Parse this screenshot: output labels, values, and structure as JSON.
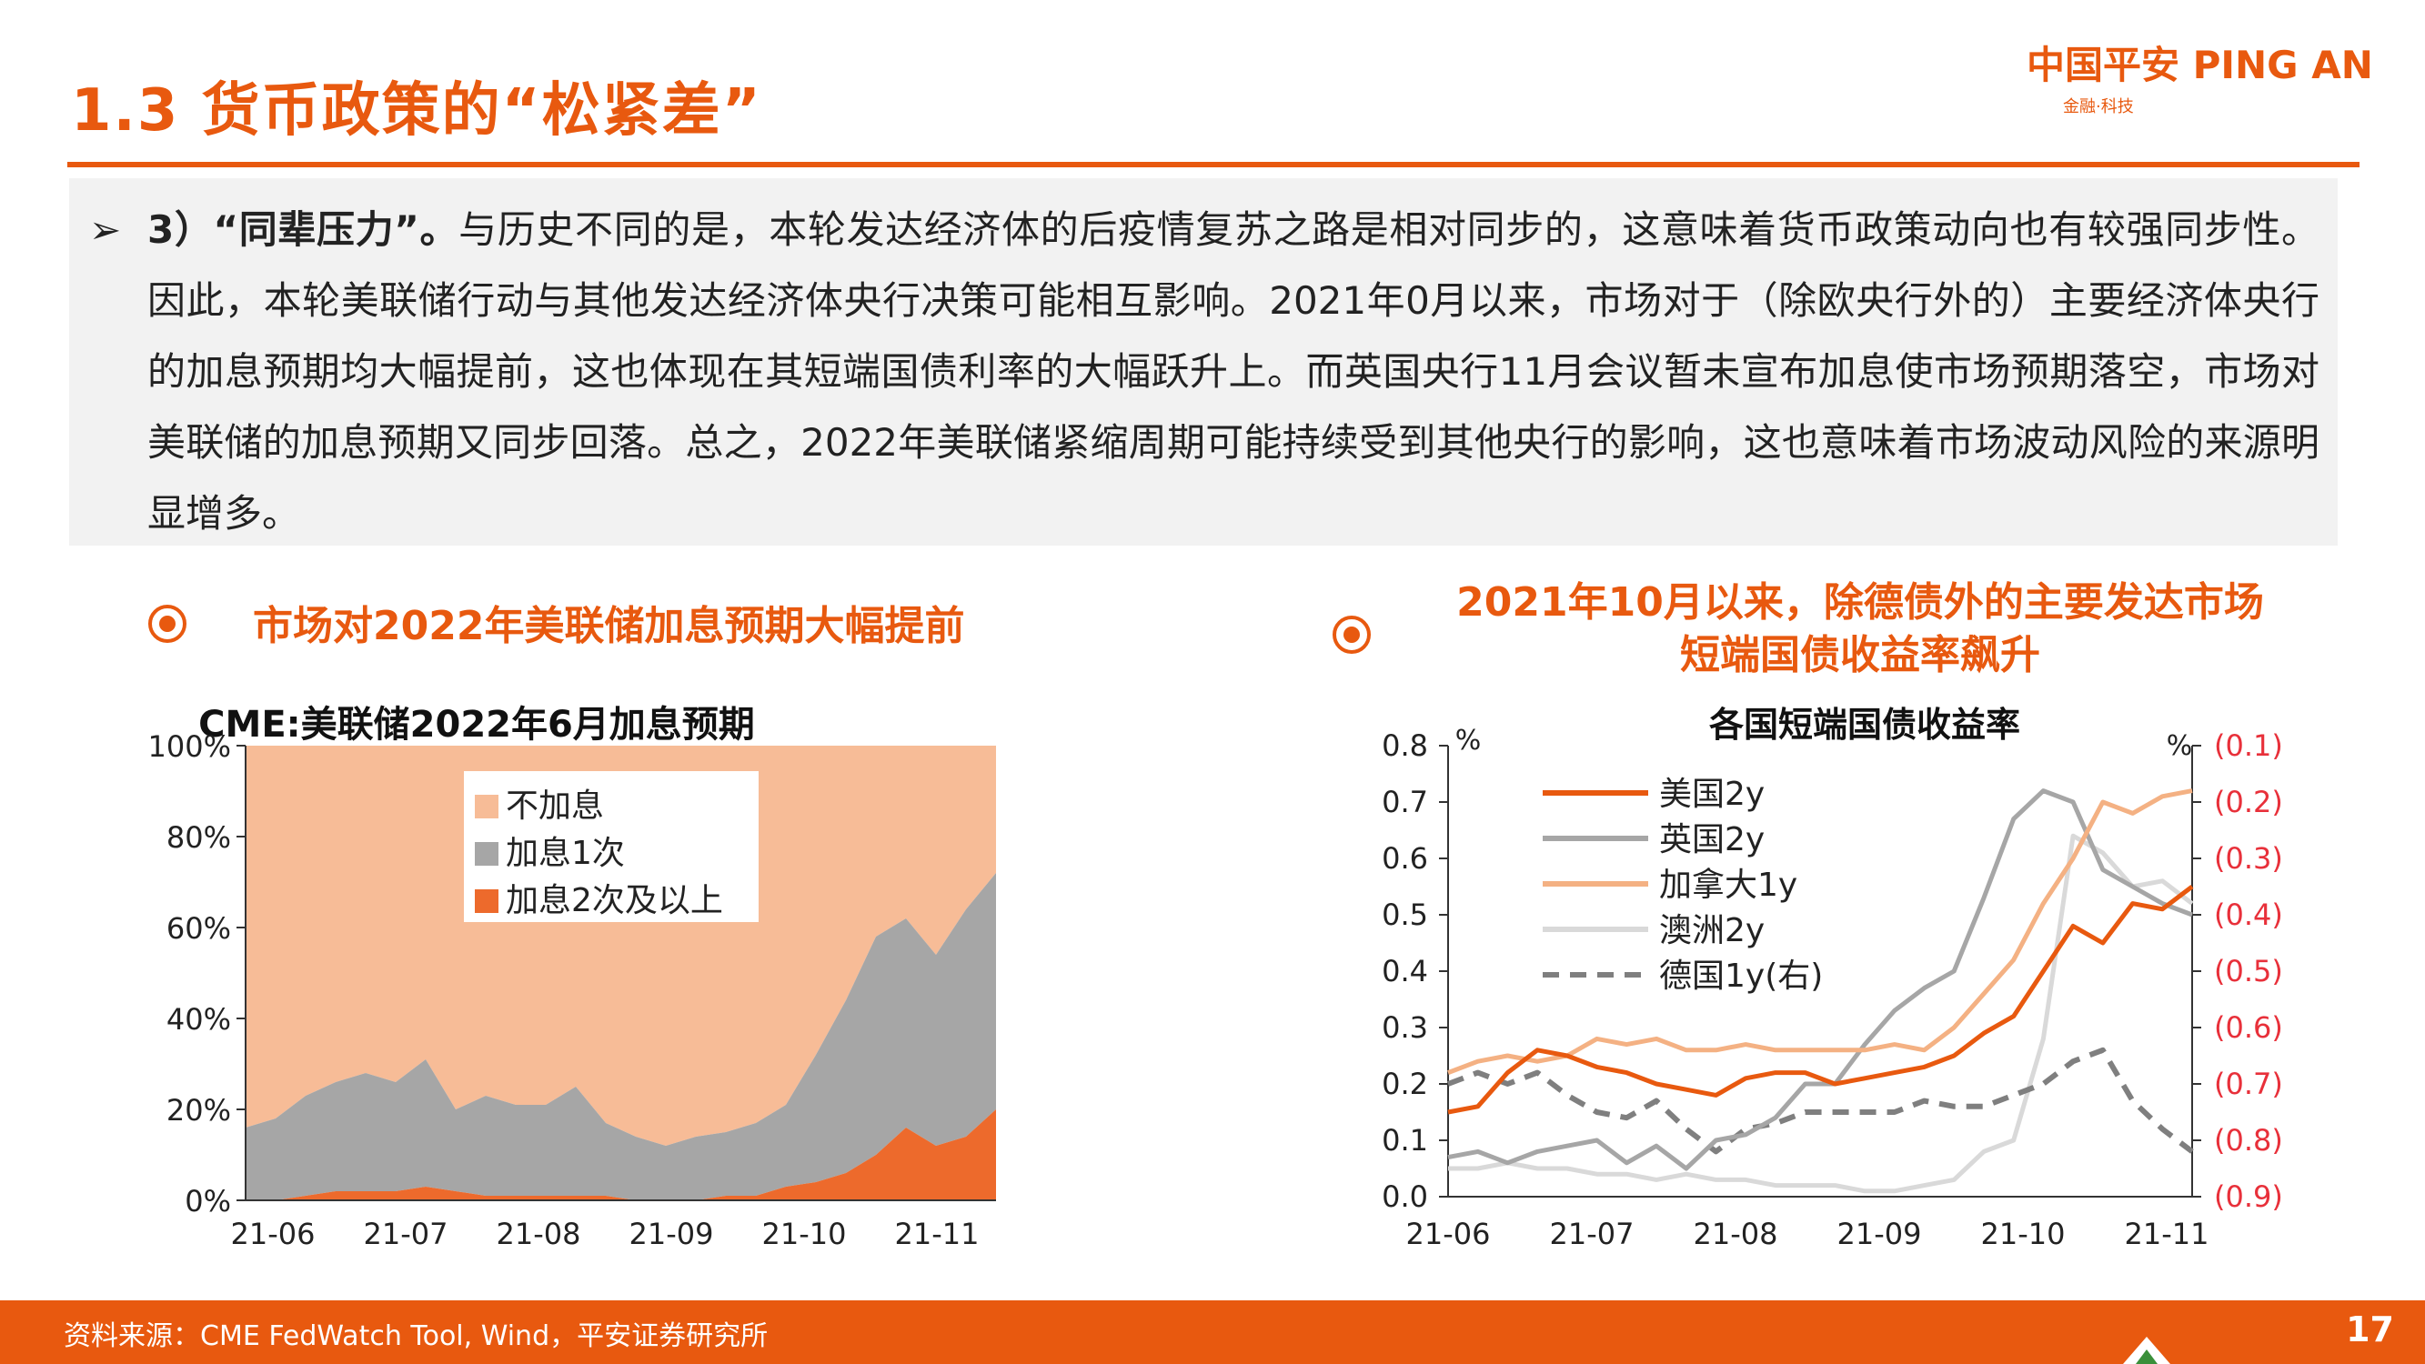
{
  "header": {
    "title": "1.3 货币政策的“松紧差”",
    "logo_main": "中国平安 PING AN",
    "logo_sub": "金融·科技"
  },
  "body": {
    "lead": "3）“同辈压力”。",
    "text": "与历史不同的是，本轮发达经济体的后疫情复苏之路是相对同步的，这意味着货币政策动向也有较强同步性。因此，本轮美联储行动与其他发达经济体央行决策可能相互影响。2021年0月以来，市场对于（除欧央行外的）主要经济体央行的加息预期均大幅提前，这也体现在其短端国债利率的大幅跃升上。而英国央行11月会议暂未宣布加息使市场预期落空，市场对美联储的加息预期又同步回落。总之，2022年美联储紧缩周期可能持续受到其他央行的影响，这也意味着市场波动风险的来源明显增多。"
  },
  "captions": {
    "left": "市场对2022年美联储加息预期大幅提前",
    "right_line1": "2021年10月以来，除德债外的主要发达市场",
    "right_line2": "短端国债收益率飙升"
  },
  "footer": {
    "source": "资料来源：CME FedWatch Tool, Wind，平安证券研究所",
    "page": "17"
  },
  "colors": {
    "accent": "#E8590F",
    "no_hike": "#F7BC97",
    "one_hike": "#A6A6A6",
    "two_plus": "#ED6A2C",
    "uk": "#A6A6A6",
    "canada": "#F4B183",
    "australia": "#D9D9D9",
    "germany": "#7F7F7F"
  },
  "chart_data": [
    {
      "type": "area",
      "stacked": true,
      "title": "CME:美联储2022年6月加息预期",
      "x_ticks": [
        "21-06",
        "21-07",
        "21-08",
        "21-09",
        "21-10",
        "21-11"
      ],
      "y_ticks": [
        "0%",
        "20%",
        "40%",
        "60%",
        "80%",
        "100%"
      ],
      "ylim": [
        0,
        100
      ],
      "legend_position": "top-center",
      "x": [
        "2021-06-01",
        "2021-06-08",
        "2021-06-15",
        "2021-06-22",
        "2021-06-29",
        "2021-07-06",
        "2021-07-13",
        "2021-07-20",
        "2021-07-27",
        "2021-08-03",
        "2021-08-10",
        "2021-08-17",
        "2021-08-24",
        "2021-08-31",
        "2021-09-07",
        "2021-09-14",
        "2021-09-21",
        "2021-09-28",
        "2021-10-05",
        "2021-10-12",
        "2021-10-19",
        "2021-10-26",
        "2021-11-02",
        "2021-11-09",
        "2021-11-16",
        "2021-11-23"
      ],
      "series": [
        {
          "name": "加息2次及以上",
          "values": [
            0,
            0,
            1,
            2,
            2,
            2,
            3,
            2,
            1,
            1,
            1,
            1,
            1,
            0,
            0,
            0,
            1,
            1,
            3,
            4,
            6,
            10,
            16,
            12,
            14,
            20
          ]
        },
        {
          "name": "加息1次",
          "values": [
            16,
            18,
            22,
            24,
            26,
            24,
            28,
            18,
            22,
            20,
            20,
            24,
            16,
            14,
            12,
            14,
            14,
            16,
            18,
            28,
            38,
            48,
            46,
            42,
            50,
            52
          ]
        },
        {
          "name": "不加息",
          "values": [
            84,
            82,
            77,
            74,
            72,
            74,
            69,
            80,
            77,
            79,
            79,
            75,
            83,
            86,
            88,
            86,
            85,
            83,
            79,
            68,
            56,
            42,
            38,
            46,
            36,
            28
          ]
        }
      ]
    },
    {
      "type": "line",
      "title": "各国短端国债收益率",
      "x_ticks": [
        "21-06",
        "21-07",
        "21-08",
        "21-09",
        "21-10",
        "21-11"
      ],
      "left_unit": "%",
      "right_unit": "%",
      "left_y_ticks": [
        "0.0",
        "0.1",
        "0.2",
        "0.3",
        "0.4",
        "0.5",
        "0.6",
        "0.7",
        "0.8"
      ],
      "right_y_ticks": [
        "(0.9)",
        "(0.8)",
        "(0.7)",
        "(0.6)",
        "(0.5)",
        "(0.4)",
        "(0.3)",
        "(0.2)",
        "(0.1)"
      ],
      "ylim_left": [
        0,
        0.8
      ],
      "ylim_right": [
        -0.9,
        -0.1
      ],
      "legend_position": "top-left",
      "x": [
        "2021-06-01",
        "2021-06-08",
        "2021-06-15",
        "2021-06-22",
        "2021-06-29",
        "2021-07-06",
        "2021-07-13",
        "2021-07-20",
        "2021-07-27",
        "2021-08-03",
        "2021-08-10",
        "2021-08-17",
        "2021-08-24",
        "2021-08-31",
        "2021-09-07",
        "2021-09-14",
        "2021-09-21",
        "2021-09-28",
        "2021-10-05",
        "2021-10-12",
        "2021-10-19",
        "2021-10-26",
        "2021-11-02",
        "2021-11-09",
        "2021-11-16",
        "2021-11-23"
      ],
      "series": [
        {
          "name": "美国2y",
          "axis": "left",
          "style": "solid",
          "values": [
            0.15,
            0.16,
            0.22,
            0.26,
            0.25,
            0.23,
            0.22,
            0.2,
            0.19,
            0.18,
            0.21,
            0.22,
            0.22,
            0.2,
            0.21,
            0.22,
            0.23,
            0.25,
            0.29,
            0.32,
            0.4,
            0.48,
            0.45,
            0.52,
            0.51,
            0.55
          ]
        },
        {
          "name": "英国2y",
          "axis": "left",
          "style": "solid",
          "values": [
            0.07,
            0.08,
            0.06,
            0.08,
            0.09,
            0.1,
            0.06,
            0.09,
            0.05,
            0.1,
            0.11,
            0.14,
            0.2,
            0.2,
            0.27,
            0.33,
            0.37,
            0.4,
            0.53,
            0.67,
            0.72,
            0.7,
            0.58,
            0.55,
            0.52,
            0.5
          ]
        },
        {
          "name": "加拿大1y",
          "axis": "left",
          "style": "solid",
          "values": [
            0.22,
            0.24,
            0.25,
            0.24,
            0.25,
            0.28,
            0.27,
            0.28,
            0.26,
            0.26,
            0.27,
            0.26,
            0.26,
            0.26,
            0.26,
            0.27,
            0.26,
            0.3,
            0.36,
            0.42,
            0.52,
            0.6,
            0.7,
            0.68,
            0.71,
            0.72
          ]
        },
        {
          "name": "澳洲2y",
          "axis": "left",
          "style": "solid",
          "values": [
            0.05,
            0.05,
            0.06,
            0.05,
            0.05,
            0.04,
            0.04,
            0.03,
            0.04,
            0.03,
            0.03,
            0.02,
            0.02,
            0.02,
            0.01,
            0.01,
            0.02,
            0.03,
            0.08,
            0.1,
            0.28,
            0.64,
            0.61,
            0.55,
            0.56,
            0.52
          ]
        },
        {
          "name": "德国1y(右)",
          "axis": "right",
          "style": "dashed",
          "values": [
            -0.7,
            -0.68,
            -0.7,
            -0.68,
            -0.72,
            -0.75,
            -0.76,
            -0.73,
            -0.78,
            -0.82,
            -0.78,
            -0.77,
            -0.75,
            -0.75,
            -0.75,
            -0.75,
            -0.73,
            -0.74,
            -0.74,
            -0.72,
            -0.7,
            -0.66,
            -0.64,
            -0.73,
            -0.78,
            -0.82
          ]
        }
      ]
    }
  ]
}
